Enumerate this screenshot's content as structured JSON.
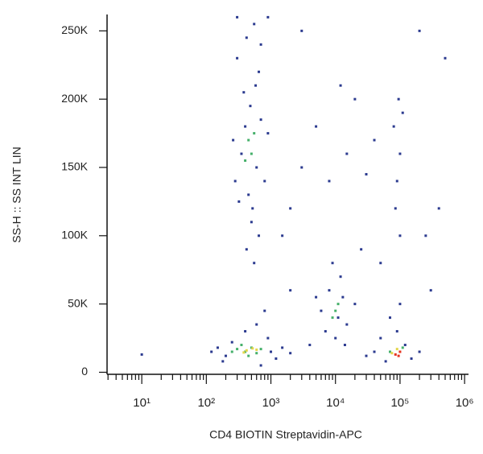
{
  "chart_data": {
    "type": "scatter",
    "x_label": "CD4 BIOTIN Streptavidin-APC",
    "y_label": "SS-H :: SS INT LIN",
    "xscale": "log",
    "xlim": [
      2.9,
      1150000
    ],
    "ylim": [
      -1500,
      262000
    ],
    "xticks": [
      {
        "value": 10,
        "label": "10¹"
      },
      {
        "value": 100,
        "label": "10²"
      },
      {
        "value": 1000,
        "label": "10³"
      },
      {
        "value": 10000,
        "label": "10⁴"
      },
      {
        "value": 100000,
        "label": "10⁵"
      },
      {
        "value": 1000000,
        "label": "10⁶"
      }
    ],
    "xminorticks": [
      3,
      4,
      5,
      6,
      7,
      8,
      9,
      20,
      30,
      40,
      50,
      60,
      70,
      80,
      90,
      200,
      300,
      400,
      500,
      600,
      700,
      800,
      900,
      2000,
      3000,
      4000,
      5000,
      6000,
      7000,
      8000,
      9000,
      20000,
      30000,
      40000,
      50000,
      60000,
      70000,
      80000,
      90000,
      200000,
      300000,
      400000,
      500000,
      600000,
      700000,
      800000,
      900000
    ],
    "yticks": [
      0,
      {
        "value": 50000,
        "label": "50K"
      },
      {
        "value": 100000,
        "label": "100K"
      },
      {
        "value": 150000,
        "label": "150K"
      },
      {
        "value": 200000,
        "label": "200K"
      },
      {
        "value": 250000,
        "label": "250K"
      }
    ],
    "series": [
      {
        "color": "#2b3a8f",
        "x": [
          300,
          420,
          550,
          650,
          380,
          480,
          700,
          260,
          350,
          600,
          800,
          450,
          320,
          520,
          900,
          400,
          580,
          700,
          280,
          500,
          650,
          420,
          550,
          300,
          900,
          150,
          200,
          250,
          1000,
          1500,
          1200,
          180,
          900,
          400,
          600,
          700,
          120,
          2000,
          800,
          6000,
          8000,
          12000,
          15000,
          7000,
          10000,
          20000,
          5000,
          9000,
          14000,
          11000,
          13000,
          4000,
          40000,
          60000,
          120000,
          150000,
          90000,
          70000,
          100000,
          30000,
          200000,
          50000,
          80000,
          100000,
          90000,
          110000,
          85000,
          95000,
          100000,
          3000,
          5000,
          8000,
          15000,
          20000,
          30000,
          2000,
          40000,
          12000,
          250000,
          300000,
          400000,
          500000,
          50000,
          25000,
          3000,
          200000,
          2000,
          1500,
          10
        ],
        "y": [
          230000,
          245000,
          255000,
          220000,
          205000,
          195000,
          185000,
          170000,
          160000,
          150000,
          140000,
          130000,
          125000,
          120000,
          175000,
          180000,
          210000,
          240000,
          140000,
          110000,
          100000,
          90000,
          80000,
          260000,
          260000,
          18000,
          12000,
          22000,
          15000,
          18000,
          10000,
          8000,
          25000,
          30000,
          35000,
          5000,
          15000,
          14000,
          45000,
          45000,
          60000,
          70000,
          35000,
          30000,
          25000,
          50000,
          55000,
          80000,
          20000,
          40000,
          55000,
          20000,
          15000,
          8000,
          20000,
          10000,
          30000,
          40000,
          50000,
          12000,
          15000,
          25000,
          180000,
          160000,
          140000,
          190000,
          120000,
          200000,
          100000,
          150000,
          180000,
          140000,
          160000,
          200000,
          145000,
          120000,
          170000,
          210000,
          100000,
          60000,
          120000,
          230000,
          80000,
          90000,
          250000,
          250000,
          60000,
          100000,
          13000
        ]
      },
      {
        "color": "#45b06a",
        "x": [
          300,
          400,
          500,
          600,
          350,
          450,
          700,
          250,
          450,
          500,
          400,
          550,
          10000,
          9000,
          11000,
          70000,
          110000
        ],
        "y": [
          17000,
          15000,
          18000,
          14000,
          20000,
          12000,
          17000,
          15000,
          170000,
          160000,
          155000,
          175000,
          45000,
          40000,
          50000,
          15000,
          18000
        ]
      },
      {
        "color": "#e3d64a",
        "x": [
          420,
          520,
          380,
          600,
          90000,
          75000
        ],
        "y": [
          16000,
          17500,
          14500,
          16500,
          17000,
          14000
        ]
      },
      {
        "color": "#e5331f",
        "x": [
          85000,
          95000,
          100000
        ],
        "y": [
          13000,
          12000,
          15000
        ]
      }
    ]
  }
}
